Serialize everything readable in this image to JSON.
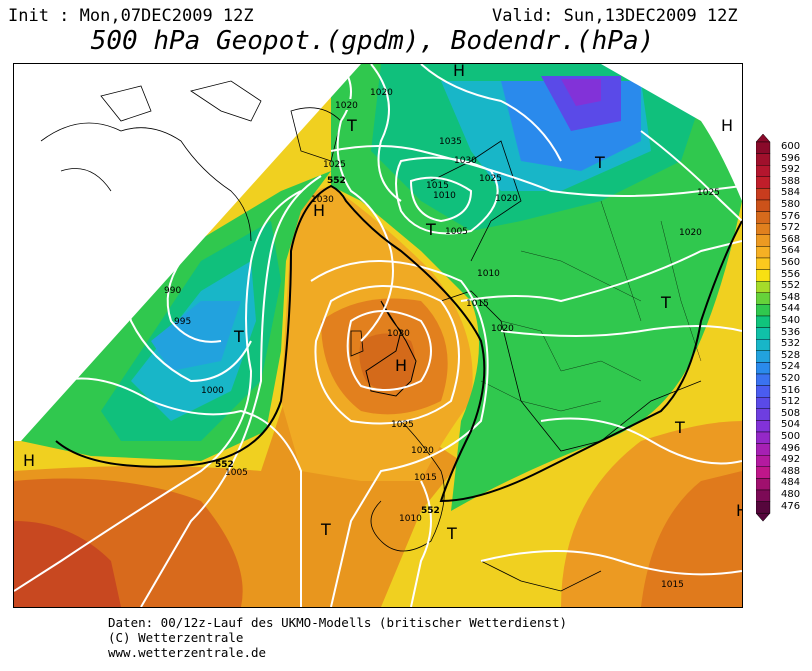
{
  "header": {
    "init": "Init : Mon,07DEC2009 12Z",
    "valid": "Valid: Sun,13DEC2009 12Z",
    "title": "500 hPa Geopot.(gpdm), Bodendr.(hPa)"
  },
  "footer": {
    "line1": "Daten: 00/12z-Lauf des UKMO-Modells (britischer Wetterdienst)",
    "line2": "(C) Wetterzentrale",
    "line3": "www.wetterzentrale.de"
  },
  "legend": {
    "levels": [
      "600",
      "596",
      "592",
      "588",
      "584",
      "580",
      "576",
      "572",
      "568",
      "564",
      "560",
      "556",
      "552",
      "548",
      "544",
      "540",
      "536",
      "532",
      "528",
      "524",
      "520",
      "516",
      "512",
      "508",
      "504",
      "500",
      "496",
      "492",
      "488",
      "484",
      "480",
      "476"
    ],
    "colors": [
      "#8a0a2a",
      "#a0102c",
      "#b4162e",
      "#c01e2a",
      "#c83c1e",
      "#cc521a",
      "#d66a1c",
      "#e0801e",
      "#ec9a22",
      "#f6b024",
      "#fcc81e",
      "#f8e012",
      "#a6dc2a",
      "#66d23a",
      "#30c84e",
      "#10c47c",
      "#10c0a8",
      "#18b6c8",
      "#22a2de",
      "#2a8aec",
      "#3a72f0",
      "#4a5cf0",
      "#5a4ae8",
      "#6e3ee0",
      "#8232d8",
      "#9428c8",
      "#a620b4",
      "#b41aa0",
      "#c0168a",
      "#a0106e",
      "#7c0a56",
      "#56063c"
    ]
  },
  "map": {
    "isobar_labels": [
      "1020",
      "1020",
      "1025",
      "1035",
      "1030",
      "1015",
      "1010",
      "1025",
      "1020",
      "1005",
      "1030",
      "990",
      "995",
      "1000",
      "1010",
      "1015",
      "1020",
      "1030",
      "1025",
      "1020",
      "1015",
      "1010",
      "1005",
      "1025",
      "1015",
      "1020"
    ],
    "height_labels": [
      "552",
      "552",
      "552"
    ],
    "pressure_centers": [
      "H",
      "H",
      "H",
      "H",
      "H",
      "H",
      "T",
      "T",
      "T",
      "T",
      "T",
      "T",
      "T",
      "T"
    ]
  }
}
